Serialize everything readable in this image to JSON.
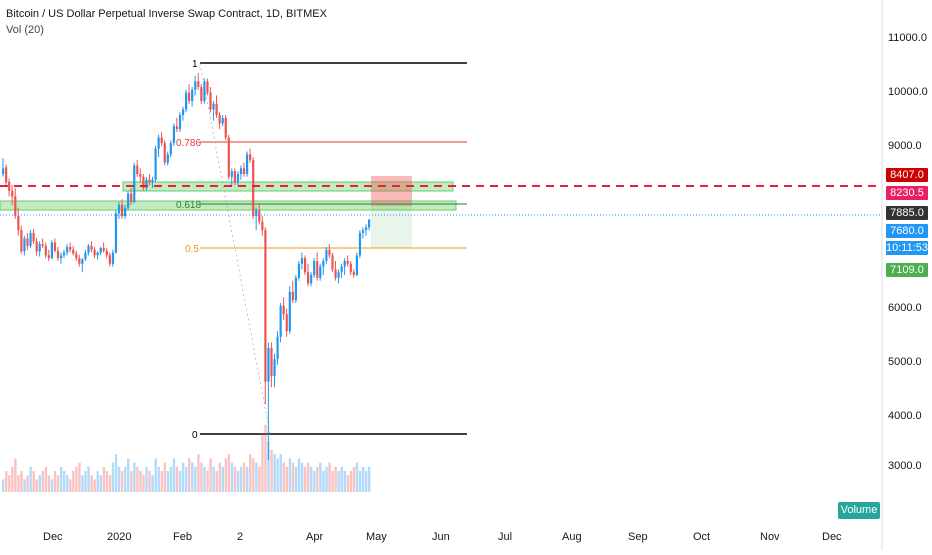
{
  "legend": {
    "title": "Bitcoin / US Dollar Perpetual Inverse Swap Contract, 1D, BITMEX",
    "indicator": "Vol (20)"
  },
  "y_axis": {
    "labels": [
      "11000.0",
      "10000.0",
      "9000.0",
      "6000.0",
      "5000.0",
      "4000.0",
      "3000.0"
    ]
  },
  "x_axis": {
    "labels": [
      "Dec",
      "2020",
      "Feb",
      "2",
      "Apr",
      "May",
      "Jun",
      "Jul",
      "Aug",
      "Sep",
      "Oct",
      "Nov",
      "Dec"
    ]
  },
  "price_tags": [
    {
      "text": "8407.0",
      "color": "#cc0000"
    },
    {
      "text": "8230.5",
      "color": "#e91e63"
    },
    {
      "text": "7885.0",
      "color": "#333333"
    },
    {
      "text": "7680.0",
      "color": "#2196f3"
    },
    {
      "text": "10:11:53",
      "color": "#2196f3"
    },
    {
      "text": "7109.0",
      "color": "#4caf50"
    }
  ],
  "fib_labels": {
    "level_1": "1",
    "level_0786": "0.786",
    "level_0618": "0.618",
    "level_05": "0.5",
    "level_0": "0"
  },
  "volume_button": "Volume",
  "colors": {
    "up": "#2196f3",
    "down": "#ef5350",
    "fib_red": "#e53935",
    "fib_orange": "#ef9a1a",
    "zone_green": "#66cc66",
    "dashed_red": "#e91e3a"
  },
  "chart_data": {
    "type": "candlestick",
    "series": [
      {
        "name": "BTCUSD",
        "values": [
          [
            8700,
            8980,
            8650,
            8800
          ],
          [
            8820,
            8870,
            8500,
            8550
          ],
          [
            8560,
            8620,
            8300,
            8400
          ],
          [
            8400,
            8500,
            8150,
            8300
          ],
          [
            8300,
            8450,
            7900,
            7950
          ],
          [
            7950,
            8100,
            7600,
            7700
          ],
          [
            7700,
            7780,
            7280,
            7320
          ],
          [
            7320,
            7600,
            7250,
            7550
          ],
          [
            7550,
            7650,
            7350,
            7420
          ],
          [
            7420,
            7700,
            7380,
            7650
          ],
          [
            7650,
            7720,
            7450,
            7500
          ],
          [
            7500,
            7560,
            7250,
            7320
          ],
          [
            7320,
            7500,
            7230,
            7450
          ],
          [
            7450,
            7550,
            7380,
            7420
          ],
          [
            7420,
            7480,
            7200,
            7250
          ],
          [
            7250,
            7350,
            7150,
            7200
          ],
          [
            7200,
            7520,
            7180,
            7480
          ],
          [
            7480,
            7550,
            7300,
            7330
          ],
          [
            7330,
            7400,
            7150,
            7200
          ],
          [
            7200,
            7300,
            7100,
            7250
          ],
          [
            7250,
            7350,
            7200,
            7300
          ],
          [
            7300,
            7450,
            7250,
            7400
          ],
          [
            7400,
            7480,
            7300,
            7350
          ],
          [
            7350,
            7420,
            7250,
            7280
          ],
          [
            7280,
            7330,
            7150,
            7200
          ],
          [
            7200,
            7260,
            7050,
            7100
          ],
          [
            7100,
            7200,
            6950,
            7180
          ],
          [
            7180,
            7350,
            7150,
            7300
          ],
          [
            7300,
            7450,
            7250,
            7420
          ],
          [
            7420,
            7500,
            7300,
            7350
          ],
          [
            7350,
            7400,
            7200,
            7250
          ],
          [
            7250,
            7320,
            7180,
            7300
          ],
          [
            7300,
            7400,
            7250,
            7380
          ],
          [
            7380,
            7480,
            7300,
            7330
          ],
          [
            7330,
            7380,
            7200,
            7250
          ],
          [
            7250,
            7300,
            7050,
            7100
          ],
          [
            7100,
            7350,
            7050,
            7300
          ],
          [
            7300,
            8050,
            7280,
            8000
          ],
          [
            8000,
            8200,
            7900,
            8150
          ],
          [
            8150,
            8250,
            7900,
            7950
          ],
          [
            7950,
            8150,
            7900,
            8100
          ],
          [
            8100,
            8400,
            8050,
            8350
          ],
          [
            8350,
            8450,
            8150,
            8200
          ],
          [
            8200,
            8900,
            8180,
            8850
          ],
          [
            8850,
            8950,
            8650,
            8700
          ],
          [
            8700,
            8800,
            8550,
            8650
          ],
          [
            8650,
            8700,
            8400,
            8450
          ],
          [
            8450,
            8650,
            8400,
            8600
          ],
          [
            8600,
            8700,
            8500,
            8550
          ],
          [
            8550,
            8650,
            8450,
            8600
          ],
          [
            8600,
            9200,
            8550,
            9150
          ],
          [
            9150,
            9400,
            9000,
            9350
          ],
          [
            9350,
            9450,
            9200,
            9250
          ],
          [
            9250,
            9300,
            8850,
            8900
          ],
          [
            8900,
            9100,
            8850,
            9050
          ],
          [
            9050,
            9300,
            9000,
            9250
          ],
          [
            9250,
            9600,
            9200,
            9550
          ],
          [
            9550,
            9700,
            9450,
            9500
          ],
          [
            9500,
            9800,
            9450,
            9750
          ],
          [
            9750,
            9900,
            9650,
            9850
          ],
          [
            9850,
            10200,
            9800,
            10150
          ],
          [
            10150,
            10300,
            9950,
            10000
          ],
          [
            10000,
            10250,
            9900,
            10200
          ],
          [
            10200,
            10450,
            10100,
            10350
          ],
          [
            10350,
            10500,
            10200,
            10250
          ],
          [
            10250,
            10300,
            9950,
            10000
          ],
          [
            10000,
            10400,
            9950,
            10350
          ],
          [
            10350,
            10400,
            10100,
            10150
          ],
          [
            10150,
            10250,
            9800,
            9850
          ],
          [
            9850,
            10000,
            9650,
            9950
          ],
          [
            9950,
            10100,
            9700,
            9750
          ],
          [
            9750,
            9800,
            9500,
            9600
          ],
          [
            9600,
            9750,
            9550,
            9700
          ],
          [
            9700,
            9750,
            9300,
            9350
          ],
          [
            9350,
            9400,
            8600,
            8650
          ],
          [
            8650,
            8800,
            8500,
            8750
          ],
          [
            8750,
            8800,
            8500,
            8550
          ],
          [
            8550,
            8750,
            8500,
            8700
          ],
          [
            8700,
            8850,
            8600,
            8800
          ],
          [
            8800,
            8900,
            8650,
            8700
          ],
          [
            8700,
            9100,
            8650,
            9050
          ],
          [
            9050,
            9150,
            8900,
            8950
          ],
          [
            8950,
            9000,
            7900,
            7950
          ],
          [
            7950,
            8100,
            7700,
            8050
          ],
          [
            8050,
            8150,
            7800,
            7850
          ],
          [
            7850,
            7950,
            7600,
            7700
          ],
          [
            7700,
            7750,
            4600,
            5000
          ],
          [
            5000,
            5700,
            3600,
            5600
          ],
          [
            5600,
            5700,
            4900,
            5100
          ],
          [
            5100,
            5500,
            4900,
            5400
          ],
          [
            5400,
            5900,
            5300,
            5800
          ],
          [
            5800,
            6400,
            5700,
            6350
          ],
          [
            6350,
            6500,
            6100,
            6200
          ],
          [
            6200,
            6300,
            5800,
            5900
          ],
          [
            5900,
            6700,
            5850,
            6600
          ],
          [
            6600,
            6800,
            6400,
            6450
          ],
          [
            6450,
            6900,
            6400,
            6850
          ],
          [
            6850,
            7150,
            6800,
            7100
          ],
          [
            7100,
            7300,
            7000,
            7200
          ],
          [
            7200,
            7250,
            6900,
            6950
          ],
          [
            6950,
            7100,
            6700,
            6750
          ],
          [
            6750,
            6950,
            6700,
            6900
          ],
          [
            6900,
            7200,
            6850,
            7150
          ],
          [
            7150,
            7300,
            6800,
            6850
          ],
          [
            6850,
            7100,
            6800,
            7050
          ],
          [
            7050,
            7200,
            6900,
            7150
          ],
          [
            7150,
            7400,
            7100,
            7350
          ],
          [
            7350,
            7450,
            7200,
            7250
          ],
          [
            7250,
            7300,
            6950,
            7000
          ],
          [
            7000,
            7150,
            6800,
            6850
          ],
          [
            6850,
            7000,
            6750,
            6950
          ],
          [
            6950,
            7100,
            6850,
            7050
          ],
          [
            7050,
            7200,
            6900,
            7150
          ],
          [
            7150,
            7250,
            7050,
            7100
          ],
          [
            7100,
            7150,
            6900,
            6950
          ],
          [
            6950,
            7000,
            6850,
            6900
          ],
          [
            6900,
            7300,
            6880,
            7250
          ],
          [
            7250,
            7700,
            7200,
            7650
          ],
          [
            7650,
            7750,
            7550,
            7700
          ],
          [
            7700,
            7800,
            7600,
            7750
          ],
          [
            7750,
            7900,
            7700,
            7885
          ]
        ]
      }
    ],
    "volume": [
      3,
      5,
      4,
      6,
      8,
      4,
      5,
      3,
      4,
      6,
      5,
      3,
      4,
      5,
      6,
      4,
      3,
      5,
      4,
      6,
      5,
      4,
      3,
      5,
      6,
      7,
      4,
      5,
      6,
      4,
      3,
      5,
      4,
      6,
      5,
      4,
      7,
      9,
      6,
      5,
      6,
      8,
      5,
      7,
      6,
      5,
      4,
      6,
      5,
      4,
      8,
      6,
      5,
      7,
      5,
      6,
      8,
      6,
      5,
      7,
      6,
      8,
      7,
      6,
      9,
      7,
      6,
      5,
      8,
      6,
      5,
      7,
      6,
      8,
      9,
      7,
      6,
      5,
      6,
      7,
      6,
      9,
      8,
      7,
      6,
      14,
      16,
      12,
      10,
      9,
      8,
      9,
      7,
      6,
      8,
      7,
      6,
      8,
      7,
      6,
      7,
      6,
      5,
      6,
      7,
      5,
      6,
      7,
      5,
      6,
      5,
      6,
      5,
      4,
      5,
      6,
      7,
      5,
      6,
      5,
      6
    ],
    "ylim": [
      2000,
      11800
    ],
    "y_ticks": [
      11000,
      10000,
      9000,
      6000,
      5000,
      4000,
      3000
    ],
    "fib": {
      "high": 10500,
      "low": 3600,
      "levels": [
        1,
        0.786,
        0.618,
        0.5,
        0
      ]
    },
    "dashed_line": 8230.5,
    "current_price": 7885.0,
    "order_zone": {
      "entry": 8230.5,
      "stop": 8407.0,
      "target": 7109.0
    }
  }
}
